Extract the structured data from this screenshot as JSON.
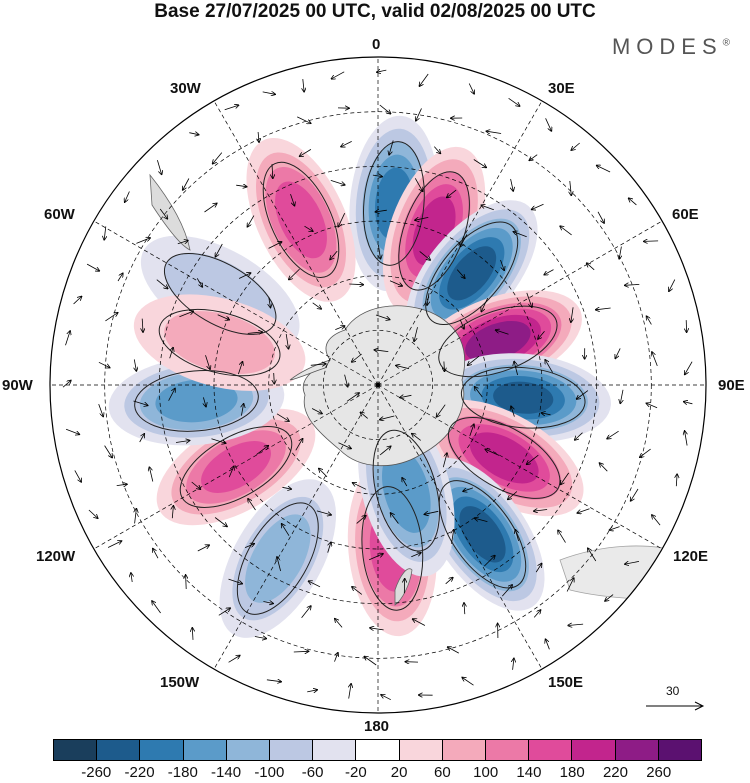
{
  "title": "Base 27/07/2025 00 UTC, valid 02/08/2025 00 UTC",
  "brand": "MODES",
  "brand_mark": "®",
  "longitude_labels": {
    "top": "0",
    "top_right": "30E",
    "right_upper": "60E",
    "right": "90E",
    "right_lower": "120E",
    "bottom_right": "150E",
    "bottom": "180",
    "bottom_left": "150W",
    "left_lower": "120W",
    "left": "90W",
    "left_upper": "60W",
    "top_left": "30W"
  },
  "vector_reference": "30",
  "colorbar": {
    "colors": [
      "#1a3e5c",
      "#1d5b8c",
      "#2e7ab0",
      "#5b9bc9",
      "#8fb6d9",
      "#bcc8e3",
      "#e2e2ef",
      "#ffffff",
      "#f9d6dc",
      "#f4aabb",
      "#ec79a7",
      "#e04b9b",
      "#c2258d",
      "#8e1c86",
      "#5b1170"
    ],
    "labels": [
      "-260",
      "-220",
      "-180",
      "-140",
      "-100",
      "-60",
      "-20",
      "20",
      "60",
      "100",
      "140",
      "180",
      "220",
      "260"
    ]
  },
  "map": {
    "anomaly_centers": [
      {
        "lon": 5,
        "lat": -40,
        "value": -200
      },
      {
        "lon": 20,
        "lat": -45,
        "value": 200
      },
      {
        "lon": 40,
        "lat": -50,
        "value": -240
      },
      {
        "lon": -25,
        "lat": -40,
        "value": 160
      },
      {
        "lon": 70,
        "lat": -55,
        "value": 250
      },
      {
        "lon": 95,
        "lat": -50,
        "value": -230
      },
      {
        "lon": 120,
        "lat": -50,
        "value": 210
      },
      {
        "lon": 145,
        "lat": -40,
        "value": -240
      },
      {
        "lon": 175,
        "lat": -45,
        "value": 170
      },
      {
        "lon": 165,
        "lat": -60,
        "value": -170
      },
      {
        "lon": -120,
        "lat": -45,
        "value": 150
      },
      {
        "lon": -95,
        "lat": -40,
        "value": -160
      },
      {
        "lon": -150,
        "lat": -35,
        "value": -120
      },
      {
        "lon": -60,
        "lat": -40,
        "value": -80
      },
      {
        "lon": -75,
        "lat": -45,
        "value": 60
      }
    ]
  }
}
